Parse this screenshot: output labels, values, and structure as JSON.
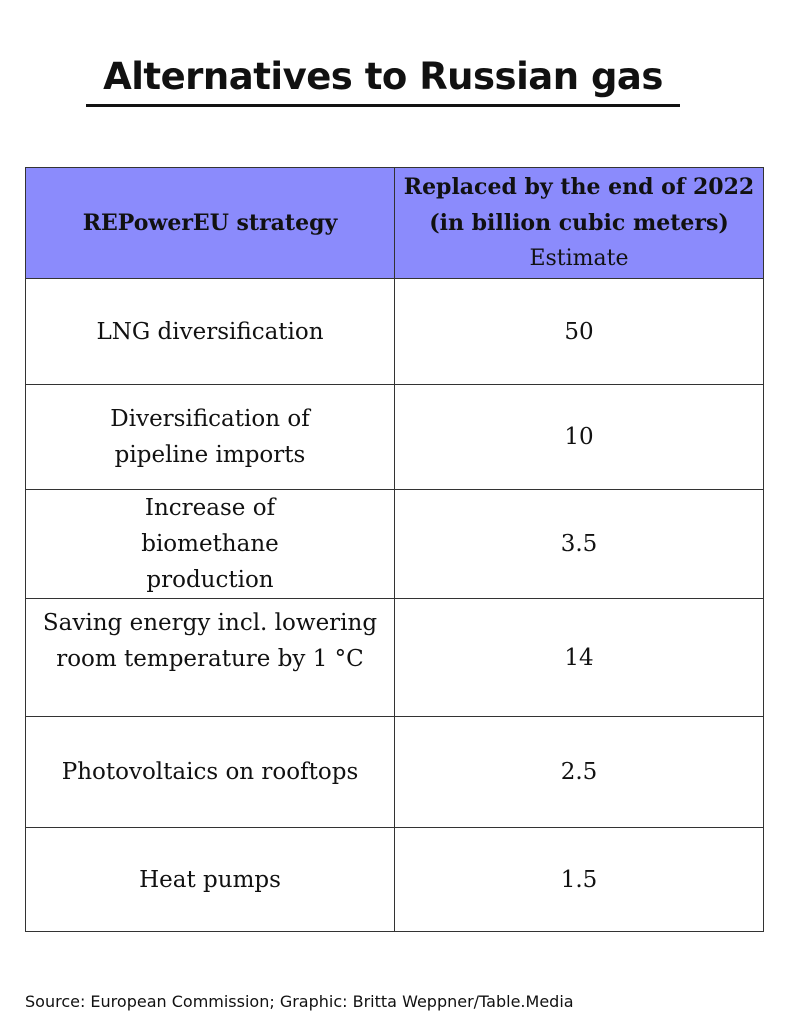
{
  "title": "Alternatives to Russian gas",
  "chart_data": {
    "type": "table",
    "columns": [
      {
        "label": "REPowerEU strategy"
      },
      {
        "label_line1": "Replaced by the end of 2022",
        "label_line2": "(in billion cubic meters)",
        "label_line3": "Estimate"
      }
    ],
    "rows": [
      {
        "strategy": "LNG diversification",
        "value": "50"
      },
      {
        "strategy": "Diversification of pipeline imports",
        "value": "10"
      },
      {
        "strategy": "Increase of biomethane production",
        "value": "3.5"
      },
      {
        "strategy": "Saving energy incl. lowering room temperature by 1 °C",
        "value": "14"
      },
      {
        "strategy": "Photovoltaics on rooftops",
        "value": "2.5"
      },
      {
        "strategy": "Heat pumps",
        "value": "1.5"
      }
    ]
  },
  "colors": {
    "header_background": "#8b8bfc"
  },
  "source": "Source: European Commission; Graphic: Britta Weppner/Table.Media"
}
